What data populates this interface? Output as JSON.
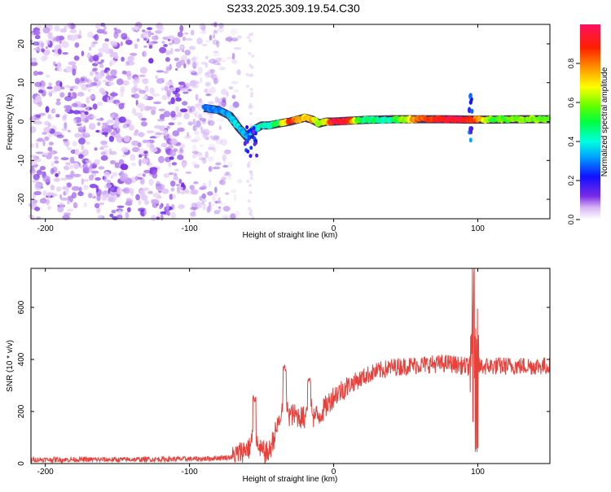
{
  "title": "S233.2025.309.19.54.C30",
  "colors": {
    "snr_line": "#e8413c",
    "frame": "#000000"
  },
  "chart_data": [
    {
      "type": "heatmap",
      "name": "spectrogram",
      "xlabel": "Height of straight line (km)",
      "ylabel": "Frequency (Hz)",
      "xlim": [
        -210,
        150
      ],
      "ylim": [
        -25,
        25
      ],
      "x_ticks": [
        -200,
        -100,
        0,
        100
      ],
      "y_ticks": [
        -20,
        -10,
        0,
        10,
        20
      ],
      "colorbar": {
        "label": "Normalized spectral amplitude",
        "range": [
          0,
          1
        ],
        "ticks": [
          0.0,
          0.2,
          0.4,
          0.6,
          0.8
        ],
        "tick_labels": [
          "0.0",
          "0.2",
          "0.4",
          "0.6",
          "0.8"
        ]
      },
      "noise_region": {
        "x_from": -210,
        "x_to": -75
      },
      "signal_track": [
        {
          "x": -90,
          "f": 3.5,
          "amp": 0.3
        },
        {
          "x": -80,
          "f": 3.0,
          "amp": 0.3
        },
        {
          "x": -72,
          "f": 1.5,
          "amp": 0.32
        },
        {
          "x": -66,
          "f": -1.5,
          "amp": 0.35
        },
        {
          "x": -60,
          "f": -4.0,
          "amp": 0.3
        },
        {
          "x": -55,
          "f": -2.0,
          "amp": 0.38
        },
        {
          "x": -50,
          "f": -1.0,
          "amp": 0.42
        },
        {
          "x": -45,
          "f": -1.0,
          "amp": 0.45
        },
        {
          "x": -38,
          "f": -0.5,
          "amp": 0.5
        },
        {
          "x": -30,
          "f": 0.0,
          "amp": 0.9
        },
        {
          "x": -20,
          "f": 1.0,
          "amp": 0.7
        },
        {
          "x": -15,
          "f": 0.5,
          "amp": 0.75
        },
        {
          "x": -10,
          "f": -0.5,
          "amp": 0.6
        },
        {
          "x": -5,
          "f": 0.0,
          "amp": 0.7
        },
        {
          "x": 0,
          "f": 0.0,
          "amp": 0.95
        },
        {
          "x": 10,
          "f": 0.2,
          "amp": 0.9
        },
        {
          "x": 20,
          "f": 0.4,
          "amp": 0.45
        },
        {
          "x": 40,
          "f": 0.6,
          "amp": 0.45
        },
        {
          "x": 60,
          "f": 0.6,
          "amp": 0.85
        },
        {
          "x": 80,
          "f": 0.6,
          "amp": 0.95
        },
        {
          "x": 95,
          "f": 0.5,
          "amp": 0.9
        },
        {
          "x": 110,
          "f": 0.5,
          "amp": 0.55
        },
        {
          "x": 130,
          "f": 0.6,
          "amp": 0.6
        },
        {
          "x": 150,
          "f": 0.6,
          "amp": 0.55
        }
      ]
    },
    {
      "type": "line",
      "name": "snr",
      "xlabel": "Height of straight line (km)",
      "ylabel": "SNR (10 * v/v)",
      "xlim": [
        -210,
        150
      ],
      "ylim": [
        0,
        750
      ],
      "x_ticks": [
        -200,
        -100,
        0,
        100
      ],
      "y_ticks": [
        0,
        200,
        400,
        600
      ],
      "series": [
        {
          "name": "SNR",
          "envelope": [
            {
              "x": -210,
              "y": 15
            },
            {
              "x": -150,
              "y": 15
            },
            {
              "x": -90,
              "y": 18
            },
            {
              "x": -70,
              "y": 25
            },
            {
              "x": -60,
              "y": 60
            },
            {
              "x": -45,
              "y": 40
            },
            {
              "x": -38,
              "y": 160
            },
            {
              "x": -30,
              "y": 190
            },
            {
              "x": -20,
              "y": 175
            },
            {
              "x": -10,
              "y": 185
            },
            {
              "x": 0,
              "y": 260
            },
            {
              "x": 10,
              "y": 300
            },
            {
              "x": 25,
              "y": 345
            },
            {
              "x": 40,
              "y": 370
            },
            {
              "x": 60,
              "y": 380
            },
            {
              "x": 80,
              "y": 385
            },
            {
              "x": 95,
              "y": 370
            },
            {
              "x": 110,
              "y": 375
            },
            {
              "x": 150,
              "y": 375
            }
          ],
          "peaks": [
            {
              "x": -55,
              "y": 250
            },
            {
              "x": -34,
              "y": 365
            },
            {
              "x": -17,
              "y": 320
            },
            {
              "x": 97,
              "y": 740
            },
            {
              "x": 99,
              "y": 50
            }
          ]
        }
      ]
    }
  ]
}
